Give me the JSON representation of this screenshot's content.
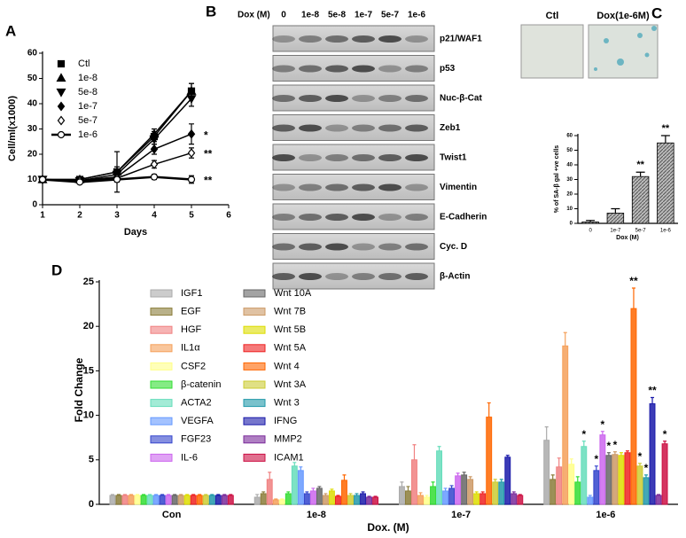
{
  "blot": {
    "panel": "B",
    "header": "Dox (M)",
    "lanes": [
      "0",
      "1e-8",
      "5e-8",
      "1e-7",
      "5e-7",
      "1e-6"
    ],
    "rows": [
      "p21/WAF1",
      "p53",
      "Nuc-β-Cat",
      "Zeb1",
      "Twist1",
      "Vimentin",
      "E-Cadherin",
      "Cyc. D",
      "β-Actin"
    ]
  },
  "images": {
    "labels": [
      "Ctl",
      "Dox(1e-6M)"
    ]
  },
  "chart_data": [
    {
      "type": "line",
      "panel": "A",
      "x_label": "Days",
      "y_label": "Cell/ml(x1000)",
      "xlim": [
        1,
        6
      ],
      "xticks": [
        1,
        2,
        3,
        4,
        5,
        6
      ],
      "ylim": [
        0,
        60
      ],
      "yticks": [
        0,
        10,
        20,
        30,
        40,
        50,
        60
      ],
      "legend": "upper left",
      "x": [
        1,
        2,
        3,
        4,
        5
      ],
      "series": [
        {
          "name": "Ctl",
          "marker": "square",
          "color": "#000",
          "values": [
            10,
            10,
            13,
            27,
            45
          ],
          "errors": [
            0.5,
            0.5,
            1,
            2,
            3
          ]
        },
        {
          "name": "1e-8",
          "marker": "triangle-up",
          "color": "#000",
          "values": [
            10,
            10,
            13,
            28,
            45
          ],
          "errors": [
            0.5,
            0.5,
            8,
            2,
            3
          ]
        },
        {
          "name": "5e-8",
          "marker": "triangle-down",
          "color": "#000",
          "values": [
            10,
            9.5,
            12,
            26,
            42
          ],
          "errors": [
            0.5,
            0.5,
            3,
            2,
            3
          ]
        },
        {
          "name": "1e-7",
          "marker": "diamond",
          "color": "#000",
          "values": [
            10,
            9.5,
            11,
            22,
            28
          ],
          "errors": [
            0.5,
            0.5,
            1,
            2,
            4
          ]
        },
        {
          "name": "5e-7",
          "marker": "open-diamond",
          "color": "#000",
          "values": [
            10,
            9.5,
            10.5,
            16,
            20.5
          ],
          "errors": [
            0.5,
            0.5,
            1,
            1.5,
            2
          ]
        },
        {
          "name": "1e-6",
          "marker": "open-circle",
          "color": "#000",
          "values": [
            10,
            9,
            10,
            11,
            10
          ],
          "errors": [
            0.5,
            0.5,
            1,
            1,
            1.5
          ]
        }
      ],
      "annotations": [
        {
          "text": "*",
          "series": 3
        },
        {
          "text": "**",
          "series": 4
        },
        {
          "text": "**",
          "series": 5
        }
      ]
    },
    {
      "type": "bar",
      "panel": "C",
      "x_label": "Dox (M)",
      "y_label": "% of SA-β gal +ve cells",
      "color": "#888",
      "categories": [
        "0",
        "1e-7",
        "5e-7",
        "1e-6"
      ],
      "values": [
        1,
        7,
        32,
        55
      ],
      "errors": [
        1,
        3,
        3,
        5
      ],
      "ylim": [
        0,
        60
      ],
      "yticks": [
        0,
        10,
        20,
        30,
        40,
        50,
        60
      ],
      "annotations": [
        {
          "text": "**",
          "category": 2
        },
        {
          "text": "**",
          "category": 3
        }
      ]
    },
    {
      "type": "grouped-bar",
      "panel": "D",
      "x_label": "Dox. (M)",
      "y_label": "Fold Change",
      "categories": [
        "Con",
        "1e-8",
        "1e-7",
        "1e-6"
      ],
      "ylim": [
        0,
        25
      ],
      "yticks": [
        0,
        5,
        10,
        15,
        20,
        25
      ],
      "legend": "upper left",
      "series": [
        {
          "name": "IGF1",
          "color": "#aaaaaa",
          "values": [
            1,
            0.8,
            2,
            7.2
          ],
          "errors": [
            0.1,
            0.3,
            0.5,
            1.5
          ]
        },
        {
          "name": "EGF",
          "color": "#8b7d3a",
          "values": [
            1,
            1.2,
            1.5,
            2.8
          ],
          "errors": [
            0.1,
            0.2,
            0.5,
            0.5
          ]
        },
        {
          "name": "HGF",
          "color": "#f08080",
          "values": [
            1,
            2.8,
            5,
            4.2
          ],
          "errors": [
            0.1,
            0.8,
            1.7,
            1
          ]
        },
        {
          "name": "IL1α",
          "color": "#f5a05a",
          "values": [
            1,
            0.5,
            1,
            17.8
          ],
          "errors": [
            0.1,
            0.1,
            0.3,
            1.5
          ]
        },
        {
          "name": "CSF2",
          "color": "#ffff88",
          "values": [
            1,
            0.5,
            0.8,
            4.5
          ],
          "errors": [
            0.1,
            0.1,
            0.2,
            0.6
          ]
        },
        {
          "name": "β-catenin",
          "color": "#33dd33",
          "values": [
            1,
            1.2,
            2,
            2.5
          ],
          "errors": [
            0.1,
            0.2,
            0.5,
            0.6
          ]
        },
        {
          "name": "ACTA2",
          "color": "#66ddbb",
          "values": [
            1,
            4.3,
            6,
            6.5
          ],
          "errors": [
            0.1,
            0.4,
            0.5,
            0.6
          ]
        },
        {
          "name": "VEGFA",
          "color": "#6699ff",
          "values": [
            1,
            3.8,
            1.5,
            0.8
          ],
          "errors": [
            0.1,
            0.4,
            0.3,
            0.2
          ]
        },
        {
          "name": "FGF23",
          "color": "#3344cc",
          "values": [
            1,
            1.2,
            1.8,
            3.8
          ],
          "errors": [
            0.1,
            0.2,
            0.3,
            0.5
          ]
        },
        {
          "name": "IL-6",
          "color": "#cc66ee",
          "values": [
            1,
            1.5,
            3.2,
            7.8
          ],
          "errors": [
            0.1,
            0.3,
            0.3,
            0.4
          ]
        },
        {
          "name": "Wnt 10A",
          "color": "#666666",
          "values": [
            1,
            1.8,
            3.3,
            5.5
          ],
          "errors": [
            0.1,
            0.2,
            0.3,
            0.3
          ]
        },
        {
          "name": "Wnt 7B",
          "color": "#cc9966",
          "values": [
            1,
            1,
            2.8,
            5.6
          ],
          "errors": [
            0.1,
            0.2,
            0.3,
            0.3
          ]
        },
        {
          "name": "Wnt 5B",
          "color": "#dddd00",
          "values": [
            1,
            1.5,
            1.2,
            5.5
          ],
          "errors": [
            0.1,
            0.2,
            0.2,
            0.3
          ]
        },
        {
          "name": "Wnt 5A",
          "color": "#ee2222",
          "values": [
            1,
            0.9,
            1.2,
            5.8
          ],
          "errors": [
            0.1,
            0.1,
            0.2,
            0.2
          ]
        },
        {
          "name": "Wnt 4",
          "color": "#ff6600",
          "values": [
            1,
            2.7,
            9.8,
            22
          ],
          "errors": [
            0.1,
            0.6,
            1.6,
            2.3
          ]
        },
        {
          "name": "Wnt 3A",
          "color": "#cccc33",
          "values": [
            1,
            1,
            2.5,
            4.3
          ],
          "errors": [
            0.1,
            0.2,
            0.3,
            0.3
          ]
        },
        {
          "name": "Wnt 3",
          "color": "#2299aa",
          "values": [
            1,
            1,
            2.5,
            3
          ],
          "errors": [
            0.1,
            0.2,
            0.3,
            0.3
          ]
        },
        {
          "name": "IFNG",
          "color": "#1a1aaa",
          "values": [
            1,
            1.2,
            5.3,
            11.3
          ],
          "errors": [
            0.1,
            0.2,
            0.2,
            0.7
          ]
        },
        {
          "name": "MMP2",
          "color": "#7a2a9a",
          "values": [
            1,
            0.8,
            1.2,
            1
          ],
          "errors": [
            0.1,
            0.1,
            0.2,
            0.1
          ]
        },
        {
          "name": "ICAM1",
          "color": "#cc1144",
          "values": [
            1,
            0.8,
            1,
            6.8
          ],
          "errors": [
            0.1,
            0.1,
            0.1,
            0.3
          ]
        }
      ],
      "annotations": [
        {
          "text": "*",
          "series": 6,
          "category": 3
        },
        {
          "text": "*",
          "series": 8,
          "category": 3
        },
        {
          "text": "*",
          "series": 9,
          "category": 3
        },
        {
          "text": "*",
          "series": 10,
          "category": 3
        },
        {
          "text": "*",
          "series": 11,
          "category": 3
        },
        {
          "text": "**",
          "series": 14,
          "category": 3
        },
        {
          "text": "*",
          "series": 15,
          "category": 3
        },
        {
          "text": "*",
          "series": 16,
          "category": 3
        },
        {
          "text": "**",
          "series": 17,
          "category": 3
        },
        {
          "text": "*",
          "series": 19,
          "category": 3
        }
      ]
    }
  ]
}
